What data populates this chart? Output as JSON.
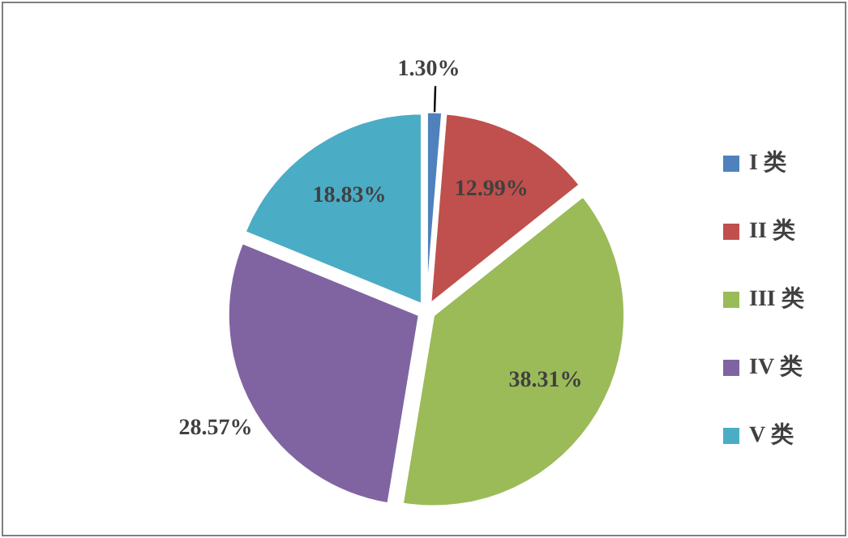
{
  "chart_data": {
    "type": "pie",
    "categories": [
      "I 类",
      "II 类",
      "III 类",
      "IV 类",
      "V 类"
    ],
    "values": [
      1.3,
      12.99,
      38.31,
      28.57,
      18.83
    ],
    "colors": [
      "#4f81bd",
      "#c0504d",
      "#9bbb59",
      "#8064a2",
      "#4bacc6"
    ],
    "value_labels": [
      "1.30%",
      "12.99%",
      "38.31%",
      "28.57%",
      "18.83%"
    ],
    "legend": "right"
  }
}
